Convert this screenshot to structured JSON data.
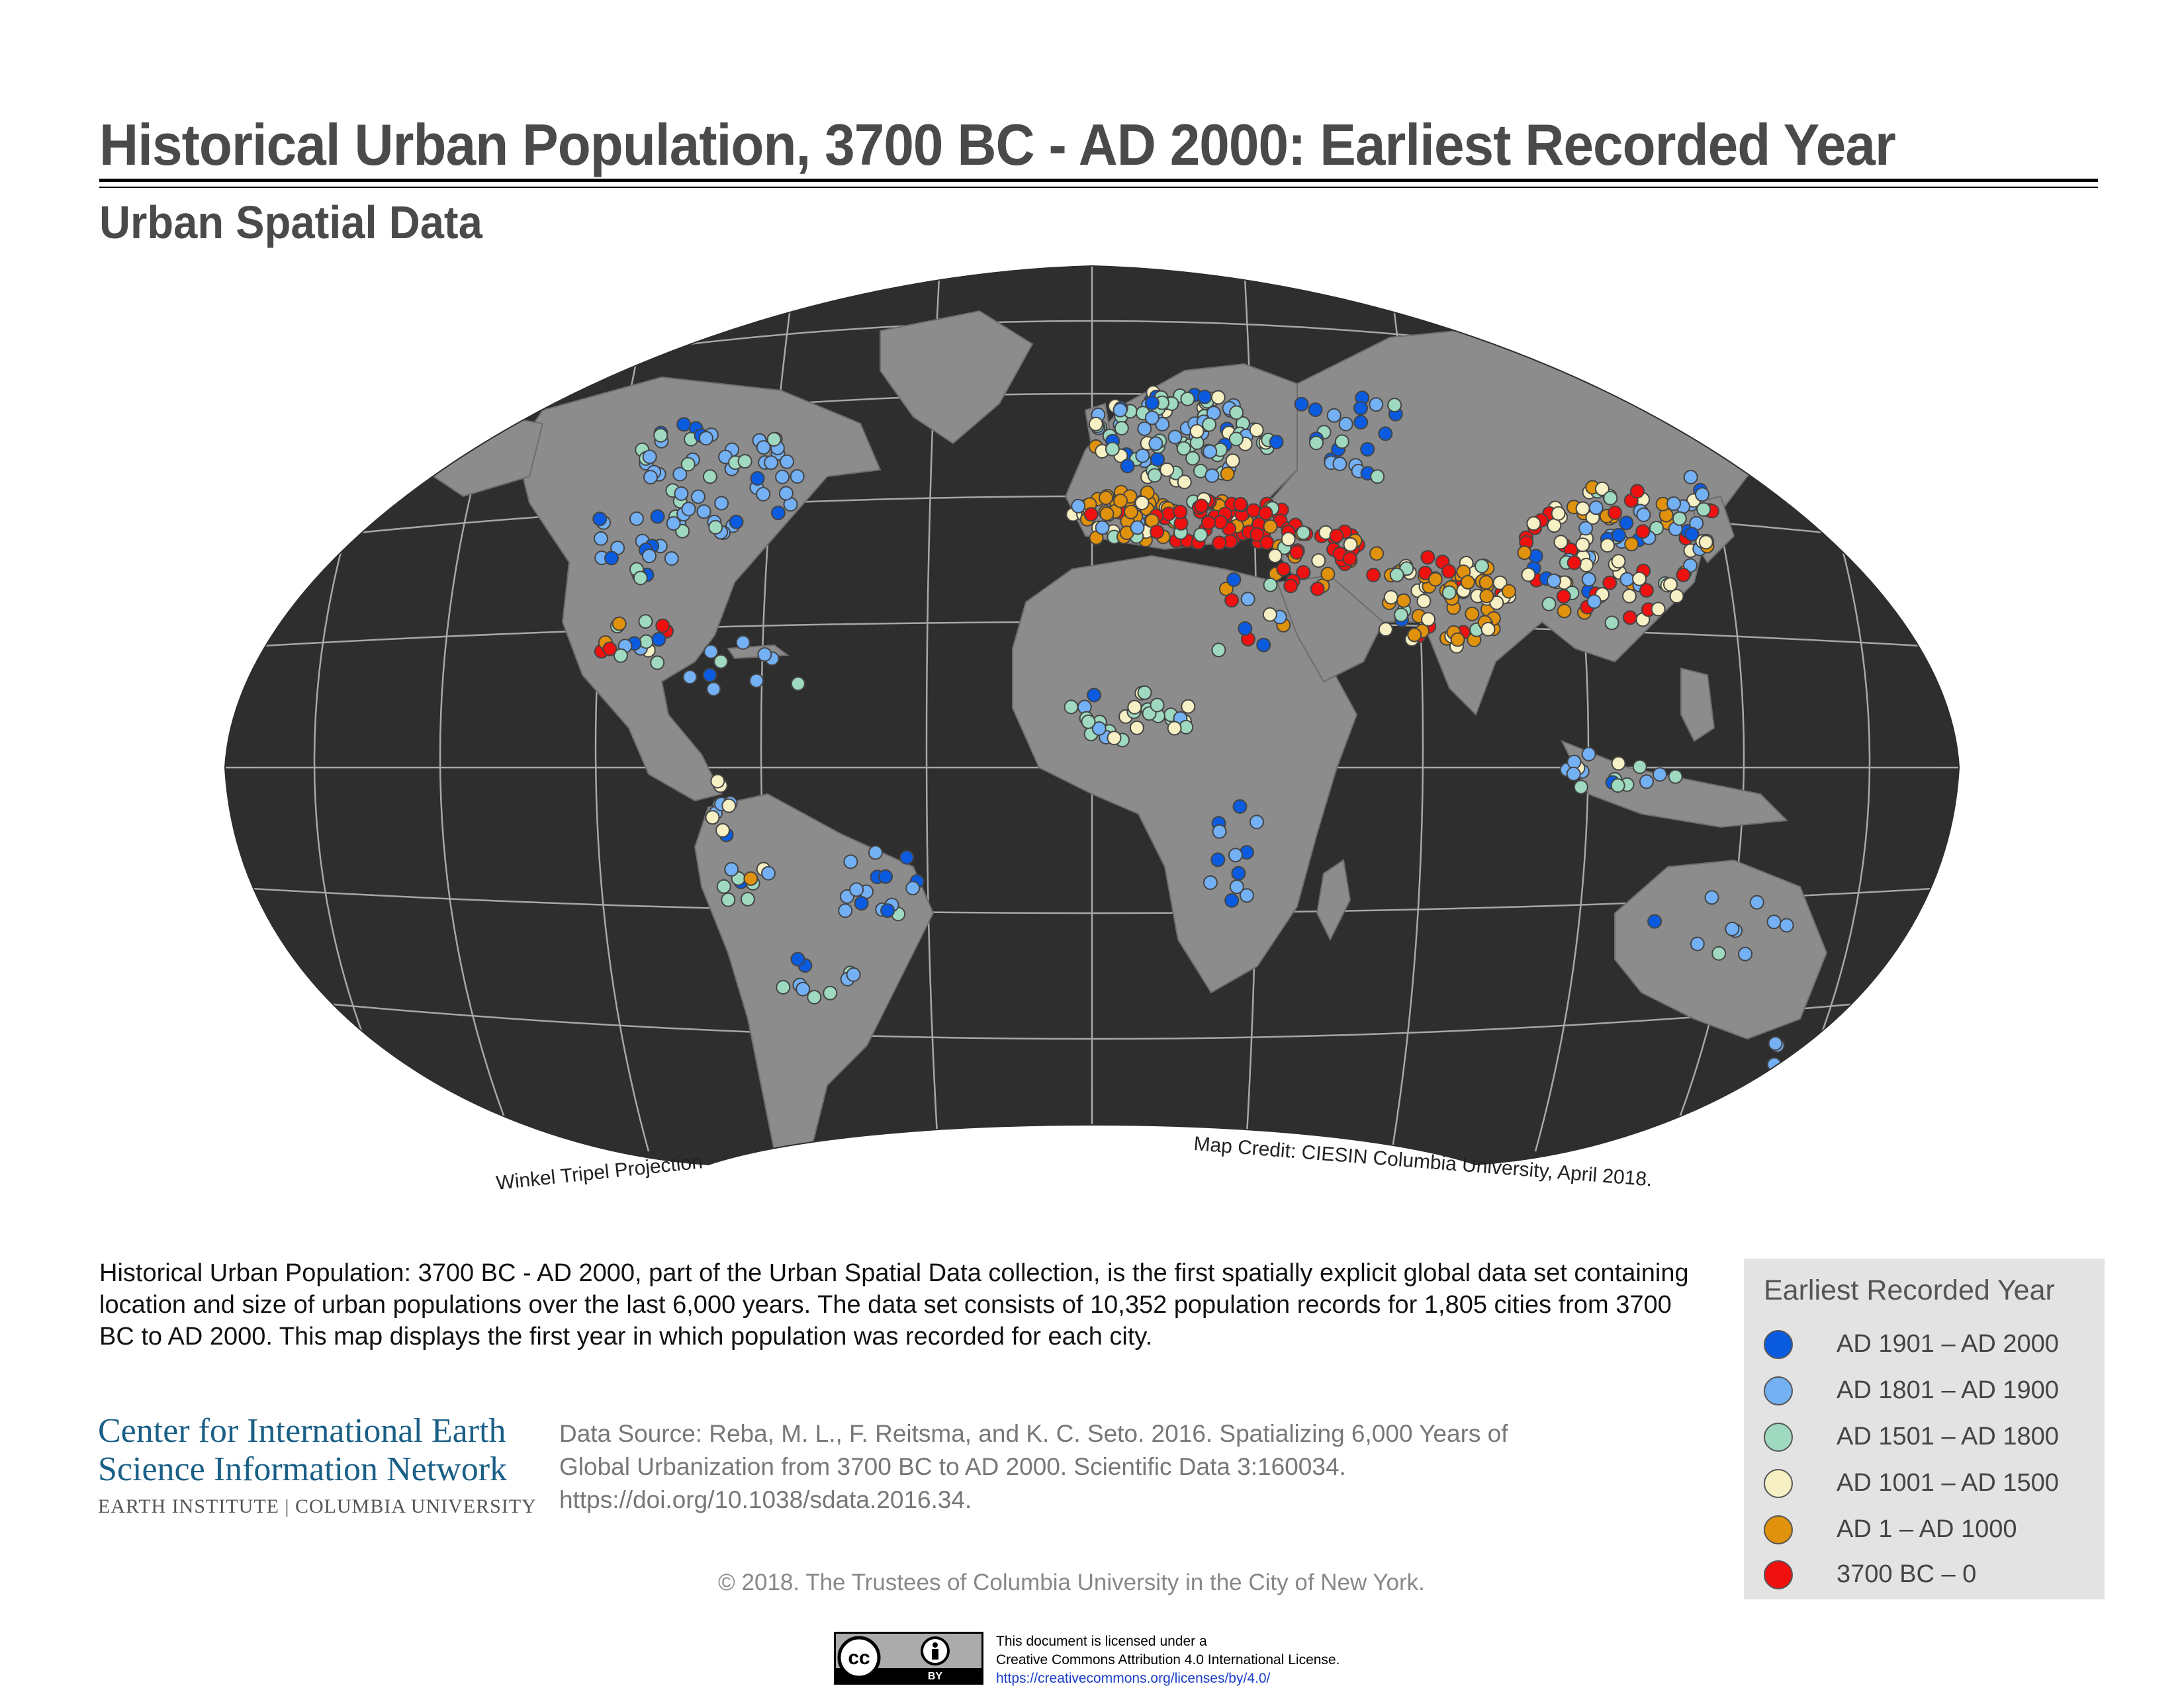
{
  "header": {
    "title": "Historical Urban Population, 3700 BC - AD 2000: Earliest Recorded Year",
    "subtitle": "Urban Spatial Data"
  },
  "map": {
    "projection_label": "Winkel Tripel Projection",
    "credit": "Map Credit: CIESIN Columbia University, April 2018."
  },
  "description": "Historical Urban Population: 3700 BC - AD 2000, part of the Urban Spatial Data collection, is the first spatially explicit global data set containing location and size of urban populations over the last 6,000 years. The data set consists of 10,352 population records for 1,805 cities from 3700 BC to AD 2000. This map displays the first year in which population was recorded for each city.",
  "organization": {
    "line1": "Center for International Earth",
    "line2": "Science Information Network",
    "line3": "EARTH INSTITUTE | COLUMBIA UNIVERSITY"
  },
  "source": {
    "line1": "Data Source: Reba, M. L., F. Reitsma, and K. C. Seto. 2016. Spatializing 6,000 Years of",
    "line2": "Global Urbanization from 3700 BC to AD 2000. Scientific Data 3:160034.",
    "line3": "https://doi.org/10.1038/sdata.2016.34."
  },
  "copyright": "© 2018. The Trustees of Columbia University in the City of New York.",
  "legend": {
    "title": "Earliest Recorded Year",
    "items": [
      {
        "label": "AD 1901 – AD 2000",
        "color": "#0a5be0"
      },
      {
        "label": "AD 1801 – AD 1900",
        "color": "#74b0f4"
      },
      {
        "label": "AD 1501 – AD 1800",
        "color": "#9fd9bf"
      },
      {
        "label": "AD 1001 – AD 1500",
        "color": "#f7f0c4"
      },
      {
        "label": "AD 1 – AD 1000",
        "color": "#e0920c"
      },
      {
        "label": "3700 BC – 0",
        "color": "#ef1010"
      }
    ]
  },
  "license": {
    "badge_cc": "cc",
    "badge_by": "BY",
    "line1": "This document is licensed under a",
    "line2": "Creative Commons Attribution 4.0 International License.",
    "url": "https://creativecommons.org/licenses/by/4.0/"
  },
  "colors": {
    "ocean": "#2e2e2e",
    "land": "#8c8c8c",
    "graticule": "#bdbdbd"
  }
}
